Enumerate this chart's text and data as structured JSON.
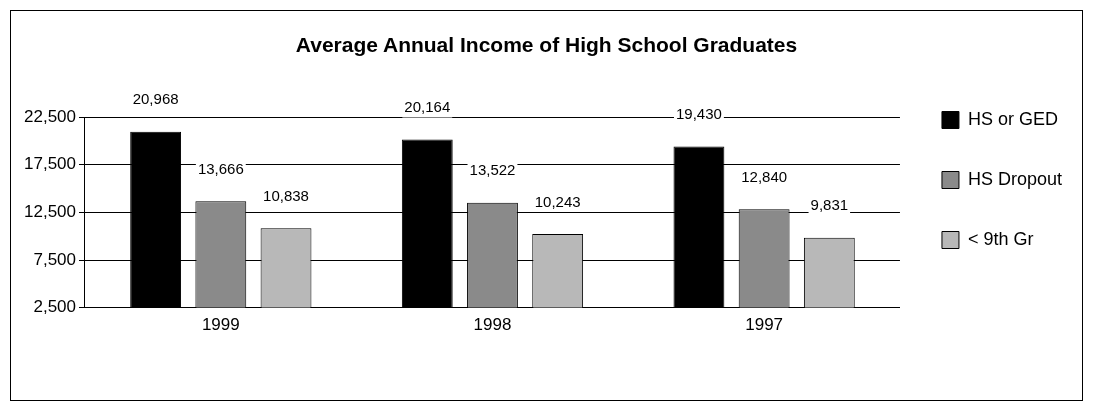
{
  "chart_data": {
    "type": "bar",
    "title": "Average Annual Income of High School Graduates",
    "categories": [
      "1999",
      "1998",
      "1997"
    ],
    "series": [
      {
        "name": "HS or GED",
        "color": "#000000",
        "values": [
          20968,
          20164,
          19430
        ],
        "value_labels": [
          "20,968",
          "20,164",
          "19,430"
        ]
      },
      {
        "name": "HS Dropout",
        "color": "#8a8a8a",
        "values": [
          13666,
          13522,
          12840
        ],
        "value_labels": [
          "13,666",
          "13,522",
          "12,840"
        ]
      },
      {
        "name": "< 9th Gr",
        "color": "#b8b8b8",
        "values": [
          10838,
          10243,
          9831
        ],
        "value_labels": [
          "10,838",
          "10,243",
          "9,831"
        ]
      }
    ],
    "ylim": [
      2500,
      22500
    ],
    "yticks": [
      {
        "value": 2500,
        "label": "2,500"
      },
      {
        "value": 7500,
        "label": "7,500"
      },
      {
        "value": 12500,
        "label": "12,500"
      },
      {
        "value": 17500,
        "label": "17,500"
      },
      {
        "value": 22500,
        "label": "22,500"
      }
    ],
    "grid": "y",
    "legend": "right"
  }
}
